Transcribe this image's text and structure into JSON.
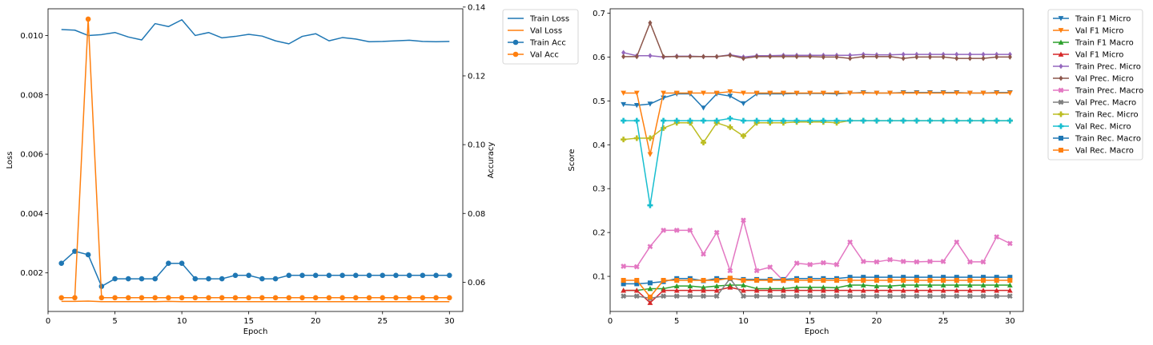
{
  "chart_data": [
    {
      "type": "line",
      "title": "",
      "xlabel": "Epoch",
      "ylabel": "Loss",
      "y2label": "Accuracy",
      "xlim": [
        0,
        31
      ],
      "ylim": [
        0.0007,
        0.0109
      ],
      "y2lim": [
        0.0515,
        0.1395
      ],
      "xticks": [
        0,
        5,
        10,
        15,
        20,
        25,
        30
      ],
      "yticks": [
        0.002,
        0.004,
        0.006,
        0.008,
        0.01
      ],
      "ytick_labels": [
        "0.002",
        "0.004",
        "0.006",
        "0.008",
        "0.010"
      ],
      "y2ticks": [
        0.06,
        0.08,
        0.1,
        0.12,
        0.14
      ],
      "y2tick_labels": [
        "0.06",
        "0.08",
        "0.10",
        "0.12",
        "0.14"
      ],
      "legend": "outside-right",
      "grid": false,
      "x": [
        1,
        2,
        3,
        4,
        5,
        6,
        7,
        8,
        9,
        10,
        11,
        12,
        13,
        14,
        15,
        16,
        17,
        18,
        19,
        20,
        21,
        22,
        23,
        24,
        25,
        26,
        27,
        28,
        29,
        30
      ],
      "series": [
        {
          "name": "Train Loss",
          "axis": "left",
          "color": "#1f77b4",
          "marker": "none",
          "values": [
            0.0102,
            0.01018,
            0.01,
            0.01003,
            0.0101,
            0.00995,
            0.00985,
            0.0104,
            0.0103,
            0.01053,
            0.01,
            0.0101,
            0.00992,
            0.00997,
            0.01004,
            0.00998,
            0.00982,
            0.00972,
            0.00997,
            0.01006,
            0.00982,
            0.00993,
            0.00988,
            0.00979,
            0.0098,
            0.00982,
            0.00984,
            0.0098,
            0.00979,
            0.0098
          ]
        },
        {
          "name": "Val Loss",
          "axis": "left",
          "color": "#ff7f0e",
          "marker": "none",
          "values": [
            0.00104,
            0.00104,
            0.00105,
            0.00103,
            0.00103,
            0.00103,
            0.00103,
            0.00103,
            0.00104,
            0.00103,
            0.00103,
            0.00103,
            0.00103,
            0.00103,
            0.00103,
            0.00103,
            0.00103,
            0.00103,
            0.00103,
            0.00103,
            0.00103,
            0.00103,
            0.00103,
            0.00103,
            0.00103,
            0.00103,
            0.00103,
            0.00103,
            0.00103,
            0.00103
          ]
        },
        {
          "name": "Train Acc",
          "axis": "right",
          "color": "#1f77b4",
          "marker": "circle",
          "values": [
            0.0655,
            0.069,
            0.068,
            0.0588,
            0.061,
            0.061,
            0.061,
            0.061,
            0.0655,
            0.0655,
            0.061,
            0.061,
            0.061,
            0.062,
            0.062,
            0.061,
            0.061,
            0.062,
            0.062,
            0.062,
            0.062,
            0.062,
            0.062,
            0.062,
            0.062,
            0.062,
            0.062,
            0.062,
            0.062,
            0.062
          ]
        },
        {
          "name": "Val Acc",
          "axis": "right",
          "color": "#ff7f0e",
          "marker": "circle",
          "values": [
            0.0555,
            0.0555,
            0.1365,
            0.0555,
            0.0555,
            0.0555,
            0.0555,
            0.0555,
            0.0555,
            0.0555,
            0.0555,
            0.0555,
            0.0555,
            0.0555,
            0.0555,
            0.0555,
            0.0555,
            0.0555,
            0.0555,
            0.0555,
            0.0555,
            0.0555,
            0.0555,
            0.0555,
            0.0555,
            0.0555,
            0.0555,
            0.0555,
            0.0555,
            0.0555
          ]
        }
      ]
    },
    {
      "type": "line",
      "title": "",
      "xlabel": "Epoch",
      "ylabel": "Score",
      "xlim": [
        0,
        31
      ],
      "ylim": [
        0.02,
        0.71
      ],
      "xticks": [
        0,
        5,
        10,
        15,
        20,
        25,
        30
      ],
      "yticks": [
        0.1,
        0.2,
        0.3,
        0.4,
        0.5,
        0.6,
        0.7
      ],
      "ytick_labels": [
        "0.1",
        "0.2",
        "0.3",
        "0.4",
        "0.5",
        "0.6",
        "0.7"
      ],
      "legend": "outside-right",
      "grid": false,
      "x": [
        1,
        2,
        3,
        4,
        5,
        6,
        7,
        8,
        9,
        10,
        11,
        12,
        13,
        14,
        15,
        16,
        17,
        18,
        19,
        20,
        21,
        22,
        23,
        24,
        25,
        26,
        27,
        28,
        29,
        30
      ],
      "series": [
        {
          "name": "Train F1 Micro",
          "color": "#1f77b4",
          "marker": "triangle-down",
          "values": [
            0.492,
            0.49,
            0.493,
            0.507,
            0.516,
            0.516,
            0.484,
            0.516,
            0.511,
            0.494,
            0.516,
            0.516,
            0.516,
            0.517,
            0.517,
            0.517,
            0.516,
            0.518,
            0.519,
            0.518,
            0.518,
            0.519,
            0.519,
            0.519,
            0.519,
            0.519,
            0.518,
            0.518,
            0.519,
            0.519
          ]
        },
        {
          "name": "Val F1 Micro",
          "color": "#ff7f0e",
          "marker": "triangle-down",
          "values": [
            0.518,
            0.518,
            0.378,
            0.518,
            0.518,
            0.518,
            0.518,
            0.518,
            0.521,
            0.518,
            0.518,
            0.518,
            0.518,
            0.518,
            0.518,
            0.518,
            0.518,
            0.518,
            0.518,
            0.518,
            0.518,
            0.518,
            0.518,
            0.518,
            0.518,
            0.518,
            0.518,
            0.518,
            0.518,
            0.518
          ]
        },
        {
          "name": "Train F1 Macro",
          "color": "#2ca02c",
          "marker": "triangle-up",
          "values": [
            0.068,
            0.068,
            0.072,
            0.072,
            0.078,
            0.078,
            0.075,
            0.078,
            0.08,
            0.08,
            0.072,
            0.072,
            0.072,
            0.075,
            0.075,
            0.075,
            0.074,
            0.08,
            0.08,
            0.078,
            0.078,
            0.08,
            0.08,
            0.08,
            0.08,
            0.08,
            0.08,
            0.08,
            0.08,
            0.08
          ]
        },
        {
          "name": "Val F1 Micro",
          "color": "#d62728",
          "marker": "triangle-up",
          "values": [
            0.068,
            0.068,
            0.04,
            0.068,
            0.068,
            0.068,
            0.068,
            0.068,
            0.075,
            0.068,
            0.068,
            0.068,
            0.068,
            0.068,
            0.068,
            0.068,
            0.068,
            0.068,
            0.068,
            0.068,
            0.068,
            0.068,
            0.068,
            0.068,
            0.068,
            0.068,
            0.068,
            0.068,
            0.068,
            0.068
          ]
        },
        {
          "name": "Train Prec. Micro",
          "color": "#9467bd",
          "marker": "diamond",
          "values": [
            0.61,
            0.603,
            0.603,
            0.6,
            0.602,
            0.602,
            0.601,
            0.601,
            0.605,
            0.6,
            0.603,
            0.603,
            0.604,
            0.604,
            0.604,
            0.604,
            0.604,
            0.604,
            0.606,
            0.605,
            0.605,
            0.606,
            0.606,
            0.606,
            0.606,
            0.606,
            0.606,
            0.606,
            0.606,
            0.606
          ]
        },
        {
          "name": "Val Prec. Micro",
          "color": "#8c564b",
          "marker": "diamond",
          "values": [
            0.601,
            0.601,
            0.678,
            0.601,
            0.601,
            0.601,
            0.601,
            0.601,
            0.604,
            0.597,
            0.601,
            0.601,
            0.601,
            0.601,
            0.601,
            0.6,
            0.6,
            0.597,
            0.601,
            0.601,
            0.601,
            0.597,
            0.6,
            0.6,
            0.6,
            0.597,
            0.597,
            0.597,
            0.6,
            0.6
          ]
        },
        {
          "name": "Train Prec. Macro",
          "color": "#e377c2",
          "marker": "x-filled",
          "values": [
            0.123,
            0.122,
            0.168,
            0.205,
            0.205,
            0.205,
            0.151,
            0.2,
            0.113,
            0.228,
            0.113,
            0.121,
            0.09,
            0.13,
            0.127,
            0.131,
            0.127,
            0.178,
            0.134,
            0.133,
            0.138,
            0.134,
            0.133,
            0.134,
            0.134,
            0.178,
            0.133,
            0.133,
            0.19,
            0.175
          ]
        },
        {
          "name": "Val Prec. Macro",
          "color": "#7f7f7f",
          "marker": "x-filled",
          "values": [
            0.055,
            0.055,
            0.05,
            0.055,
            0.055,
            0.055,
            0.055,
            0.055,
            0.095,
            0.055,
            0.055,
            0.055,
            0.055,
            0.055,
            0.055,
            0.055,
            0.055,
            0.055,
            0.055,
            0.055,
            0.055,
            0.055,
            0.055,
            0.055,
            0.055,
            0.055,
            0.055,
            0.055,
            0.055,
            0.055
          ]
        },
        {
          "name": "Train Rec. Micro",
          "color": "#bcbd22",
          "marker": "plus-filled",
          "values": [
            0.412,
            0.415,
            0.415,
            0.438,
            0.45,
            0.45,
            0.405,
            0.45,
            0.44,
            0.42,
            0.45,
            0.45,
            0.45,
            0.452,
            0.452,
            0.452,
            0.45,
            0.455,
            0.455,
            0.455,
            0.455,
            0.455,
            0.455,
            0.455,
            0.455,
            0.455,
            0.455,
            0.455,
            0.455,
            0.455
          ]
        },
        {
          "name": "Val Rec. Micro",
          "color": "#17becf",
          "marker": "plus-filled",
          "values": [
            0.455,
            0.455,
            0.262,
            0.455,
            0.455,
            0.455,
            0.455,
            0.455,
            0.46,
            0.455,
            0.455,
            0.455,
            0.455,
            0.455,
            0.455,
            0.455,
            0.455,
            0.455,
            0.455,
            0.455,
            0.455,
            0.455,
            0.455,
            0.455,
            0.455,
            0.455,
            0.455,
            0.455,
            0.455,
            0.455
          ]
        },
        {
          "name": "Train Rec. Macro",
          "color": "#1f77b4",
          "marker": "square",
          "values": [
            0.083,
            0.083,
            0.085,
            0.088,
            0.095,
            0.095,
            0.09,
            0.095,
            0.095,
            0.093,
            0.093,
            0.093,
            0.093,
            0.095,
            0.095,
            0.095,
            0.095,
            0.098,
            0.098,
            0.098,
            0.098,
            0.098,
            0.098,
            0.098,
            0.098,
            0.098,
            0.098,
            0.098,
            0.098,
            0.098
          ]
        },
        {
          "name": "Val Rec. Macro",
          "color": "#ff7f0e",
          "marker": "square",
          "values": [
            0.091,
            0.091,
            0.053,
            0.091,
            0.091,
            0.091,
            0.091,
            0.091,
            0.096,
            0.091,
            0.091,
            0.091,
            0.091,
            0.091,
            0.091,
            0.091,
            0.091,
            0.091,
            0.091,
            0.091,
            0.091,
            0.091,
            0.091,
            0.091,
            0.091,
            0.091,
            0.091,
            0.091,
            0.091,
            0.091
          ]
        }
      ]
    }
  ]
}
